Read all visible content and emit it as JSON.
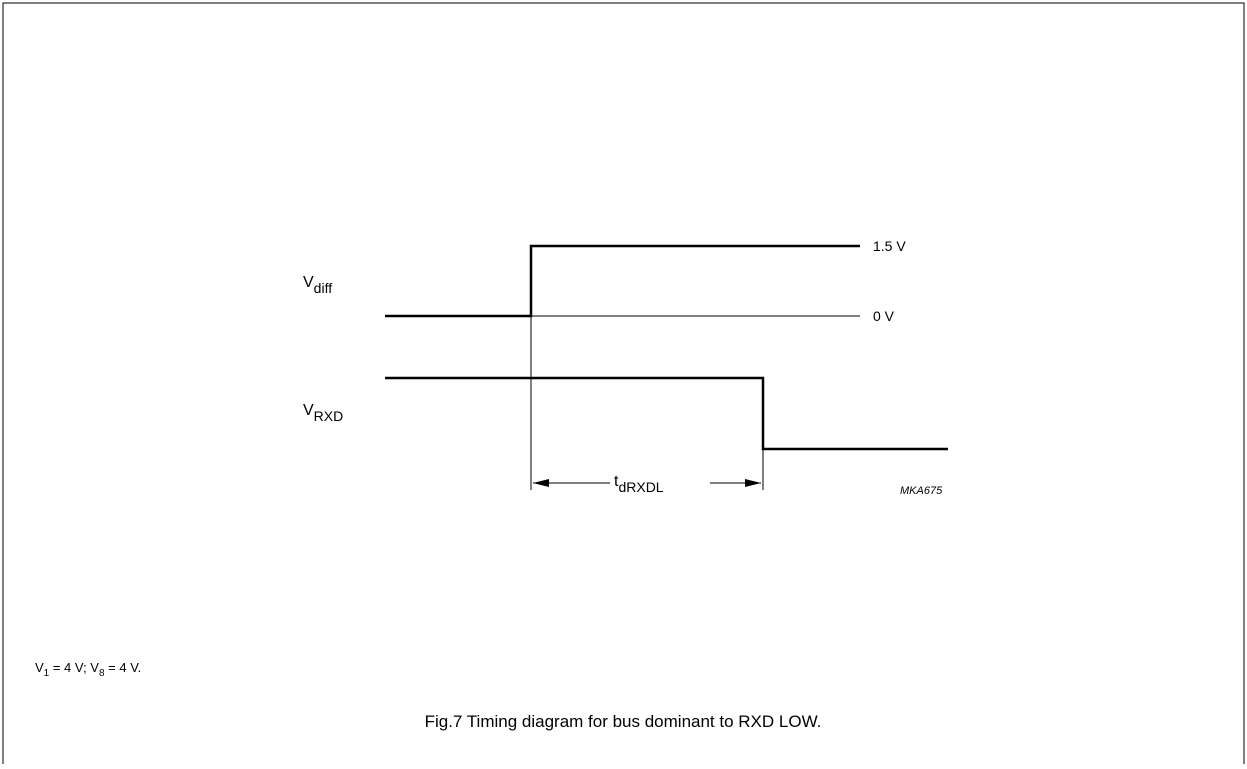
{
  "labels": {
    "vdiff": {
      "base": "V",
      "sub": "diff"
    },
    "vrxd": {
      "base": "V",
      "sub": "RXD"
    },
    "delay": {
      "base": "t",
      "sub": "dRXDL"
    },
    "high_level": "1.5 V",
    "low_level": "0 V",
    "code": "MKA675"
  },
  "note": [
    {
      "text": "V"
    },
    {
      "sub": "1"
    },
    {
      "text": " = 4 V; V"
    },
    {
      "sub": "8"
    },
    {
      "text": " = 4 V."
    }
  ],
  "caption": "Fig.7  Timing diagram for bus dominant to RXD LOW."
}
